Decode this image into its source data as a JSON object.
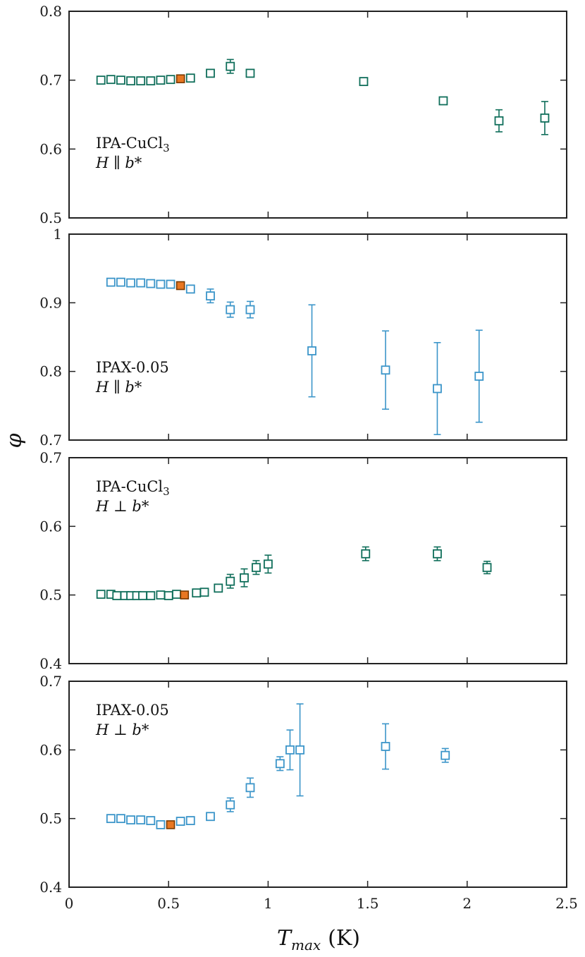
{
  "colors": {
    "green": "#0f6e5a",
    "blue": "#3b95c9",
    "orange": "#e87722",
    "axis": "#222222"
  },
  "figure": {
    "xlabel_main": "T",
    "xlabel_sub": "max",
    "xlabel_unit": "(K)",
    "ylabel": "φ"
  },
  "chart_data": [
    {
      "type": "scatter",
      "panel": "a",
      "annotation": {
        "compound": "IPA-CuCl",
        "subscript": "3",
        "field": "H ∥ b*"
      },
      "marker_color": "green",
      "xlim": [
        0,
        2.5
      ],
      "ylim": [
        0.5,
        0.8
      ],
      "xticks": [
        0,
        0.5,
        1,
        1.5,
        2,
        2.5
      ],
      "yticks": [
        0.5,
        0.6,
        0.7,
        0.8
      ],
      "ytick_labels": [
        "0.5",
        "0.6",
        "0.7",
        "0.8"
      ],
      "points": [
        {
          "x": 0.16,
          "y": 0.7,
          "err": 0.002
        },
        {
          "x": 0.21,
          "y": 0.701,
          "err": 0.002
        },
        {
          "x": 0.26,
          "y": 0.7,
          "err": 0.002
        },
        {
          "x": 0.31,
          "y": 0.699,
          "err": 0.002
        },
        {
          "x": 0.36,
          "y": 0.699,
          "err": 0.002
        },
        {
          "x": 0.41,
          "y": 0.699,
          "err": 0.002
        },
        {
          "x": 0.46,
          "y": 0.7,
          "err": 0.002
        },
        {
          "x": 0.51,
          "y": 0.701,
          "err": 0.002
        },
        {
          "x": 0.61,
          "y": 0.703,
          "err": 0.003
        },
        {
          "x": 0.71,
          "y": 0.71,
          "err": 0.004
        },
        {
          "x": 0.81,
          "y": 0.72,
          "err": 0.01
        },
        {
          "x": 0.91,
          "y": 0.71,
          "err": 0.004
        },
        {
          "x": 1.48,
          "y": 0.698,
          "err": 0.004
        },
        {
          "x": 1.88,
          "y": 0.67,
          "err": 0.004
        },
        {
          "x": 2.16,
          "y": 0.641,
          "err": 0.016
        },
        {
          "x": 2.39,
          "y": 0.645,
          "err": 0.024
        }
      ],
      "highlight": {
        "x": 0.56,
        "y": 0.702
      }
    },
    {
      "type": "scatter",
      "panel": "b",
      "annotation": {
        "compound": "IPAX-0.05",
        "subscript": "",
        "field": "H ∥ b*"
      },
      "marker_color": "blue",
      "xlim": [
        0,
        2.5
      ],
      "ylim": [
        0.7,
        1.0
      ],
      "xticks": [
        0,
        0.5,
        1,
        1.5,
        2,
        2.5
      ],
      "yticks": [
        0.7,
        0.8,
        0.9,
        1.0
      ],
      "ytick_labels": [
        "0.7",
        "0.8",
        "0.9",
        "1"
      ],
      "points": [
        {
          "x": 0.21,
          "y": 0.93,
          "err": 0.003
        },
        {
          "x": 0.26,
          "y": 0.93,
          "err": 0.003
        },
        {
          "x": 0.31,
          "y": 0.929,
          "err": 0.003
        },
        {
          "x": 0.36,
          "y": 0.929,
          "err": 0.003
        },
        {
          "x": 0.41,
          "y": 0.928,
          "err": 0.003
        },
        {
          "x": 0.46,
          "y": 0.927,
          "err": 0.003
        },
        {
          "x": 0.51,
          "y": 0.927,
          "err": 0.003
        },
        {
          "x": 0.61,
          "y": 0.92,
          "err": 0.005
        },
        {
          "x": 0.71,
          "y": 0.91,
          "err": 0.01
        },
        {
          "x": 0.81,
          "y": 0.89,
          "err": 0.011
        },
        {
          "x": 0.91,
          "y": 0.89,
          "err": 0.012
        },
        {
          "x": 1.22,
          "y": 0.83,
          "err": 0.067
        },
        {
          "x": 1.59,
          "y": 0.802,
          "err": 0.057
        },
        {
          "x": 1.85,
          "y": 0.775,
          "err": 0.067
        },
        {
          "x": 2.06,
          "y": 0.793,
          "err": 0.067
        }
      ],
      "highlight": {
        "x": 0.56,
        "y": 0.925
      }
    },
    {
      "type": "scatter",
      "panel": "c",
      "annotation": {
        "compound": "IPA-CuCl",
        "subscript": "3",
        "field": "H ⊥ b*"
      },
      "marker_color": "green",
      "xlim": [
        0,
        2.5
      ],
      "ylim": [
        0.4,
        0.7
      ],
      "xticks": [
        0,
        0.5,
        1,
        1.5,
        2,
        2.5
      ],
      "yticks": [
        0.4,
        0.5,
        0.6,
        0.7
      ],
      "ytick_labels": [
        "0.4",
        "0.5",
        "0.6",
        "0.7"
      ],
      "points": [
        {
          "x": 0.16,
          "y": 0.501,
          "err": 0.002
        },
        {
          "x": 0.21,
          "y": 0.501,
          "err": 0.002
        },
        {
          "x": 0.24,
          "y": 0.499,
          "err": 0.002
        },
        {
          "x": 0.28,
          "y": 0.499,
          "err": 0.002
        },
        {
          "x": 0.31,
          "y": 0.499,
          "err": 0.002
        },
        {
          "x": 0.34,
          "y": 0.499,
          "err": 0.002
        },
        {
          "x": 0.37,
          "y": 0.499,
          "err": 0.002
        },
        {
          "x": 0.41,
          "y": 0.499,
          "err": 0.002
        },
        {
          "x": 0.46,
          "y": 0.5,
          "err": 0.002
        },
        {
          "x": 0.5,
          "y": 0.499,
          "err": 0.002
        },
        {
          "x": 0.54,
          "y": 0.501,
          "err": 0.002
        },
        {
          "x": 0.64,
          "y": 0.503,
          "err": 0.003
        },
        {
          "x": 0.68,
          "y": 0.504,
          "err": 0.003
        },
        {
          "x": 0.75,
          "y": 0.51,
          "err": 0.005
        },
        {
          "x": 0.81,
          "y": 0.52,
          "err": 0.01
        },
        {
          "x": 0.88,
          "y": 0.525,
          "err": 0.013
        },
        {
          "x": 0.94,
          "y": 0.54,
          "err": 0.01
        },
        {
          "x": 1.0,
          "y": 0.545,
          "err": 0.013
        },
        {
          "x": 1.49,
          "y": 0.56,
          "err": 0.01
        },
        {
          "x": 1.85,
          "y": 0.56,
          "err": 0.01
        },
        {
          "x": 2.1,
          "y": 0.54,
          "err": 0.009
        }
      ],
      "highlight": {
        "x": 0.58,
        "y": 0.5
      }
    },
    {
      "type": "scatter",
      "panel": "d",
      "annotation": {
        "compound": "IPAX-0.05",
        "subscript": "",
        "field": "H ⊥ b*"
      },
      "marker_color": "blue",
      "xlim": [
        0,
        2.5
      ],
      "ylim": [
        0.4,
        0.7
      ],
      "xticks": [
        0,
        0.5,
        1,
        1.5,
        2,
        2.5
      ],
      "xtick_labels": [
        "0",
        "0.5",
        "1",
        "1.5",
        "2",
        "2.5"
      ],
      "yticks": [
        0.4,
        0.5,
        0.6,
        0.7
      ],
      "ytick_labels": [
        "0.4",
        "0.5",
        "0.6",
        "0.7"
      ],
      "points": [
        {
          "x": 0.21,
          "y": 0.5,
          "err": 0.002
        },
        {
          "x": 0.26,
          "y": 0.5,
          "err": 0.002
        },
        {
          "x": 0.31,
          "y": 0.498,
          "err": 0.002
        },
        {
          "x": 0.36,
          "y": 0.498,
          "err": 0.002
        },
        {
          "x": 0.41,
          "y": 0.497,
          "err": 0.002
        },
        {
          "x": 0.46,
          "y": 0.491,
          "err": 0.003
        },
        {
          "x": 0.56,
          "y": 0.496,
          "err": 0.003
        },
        {
          "x": 0.61,
          "y": 0.497,
          "err": 0.003
        },
        {
          "x": 0.71,
          "y": 0.503,
          "err": 0.004
        },
        {
          "x": 0.81,
          "y": 0.52,
          "err": 0.01
        },
        {
          "x": 0.91,
          "y": 0.545,
          "err": 0.014
        },
        {
          "x": 1.06,
          "y": 0.58,
          "err": 0.01
        },
        {
          "x": 1.11,
          "y": 0.6,
          "err": 0.029
        },
        {
          "x": 1.16,
          "y": 0.6,
          "err": 0.067
        },
        {
          "x": 1.59,
          "y": 0.605,
          "err": 0.033
        },
        {
          "x": 1.89,
          "y": 0.592,
          "err": 0.01
        }
      ],
      "highlight": {
        "x": 0.51,
        "y": 0.491
      }
    }
  ]
}
